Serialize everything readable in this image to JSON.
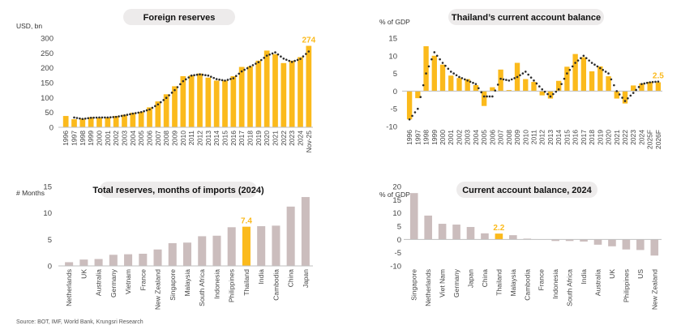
{
  "colors": {
    "highlight": "#FBBA1C",
    "grey_bar": "#CBBDBD",
    "trend": "#2B2B2B",
    "pill": "#EDEBEB",
    "axis": "#BFBFBF"
  },
  "source": "Source: BOT, IMF, World Bank, Krungsri Research",
  "chart_data": [
    {
      "type": "bar",
      "title": "Foreign reserves",
      "ylabel": "USD, bn",
      "ylim": [
        0,
        300
      ],
      "yticks": [
        0,
        50,
        100,
        150,
        200,
        250,
        300
      ],
      "categories": [
        "1996",
        "1997",
        "1998",
        "1999",
        "2000",
        "2001",
        "2002",
        "2003",
        "2004",
        "2005",
        "2006",
        "2007",
        "2008",
        "2009",
        "2010",
        "2011",
        "2012",
        "2013",
        "2014",
        "2015",
        "2016",
        "2017",
        "2018",
        "2019",
        "2020",
        "2021",
        "2022",
        "2023",
        "2024",
        "Nov-25"
      ],
      "values": [
        38,
        27,
        29,
        34,
        32,
        33,
        38,
        42,
        49,
        52,
        67,
        87,
        111,
        138,
        172,
        175,
        181,
        167,
        157,
        157,
        172,
        203,
        205,
        224,
        258,
        246,
        216,
        224,
        236,
        274
      ],
      "trend": [
        null,
        33,
        28,
        32,
        33,
        33,
        35,
        40,
        46,
        51,
        60,
        77,
        99,
        125,
        155,
        174,
        178,
        174,
        162,
        157,
        165,
        188,
        204,
        219,
        241,
        252,
        231,
        220,
        230,
        255
      ],
      "data_label": {
        "category": "Nov-25",
        "text": "274"
      }
    },
    {
      "type": "bar",
      "title": "Thailand’s current account balance",
      "ylabel": "% of GDP",
      "ylim": [
        -10,
        15
      ],
      "yticks": [
        -10,
        -5,
        0,
        5,
        10,
        15
      ],
      "categories": [
        "1996",
        "1997",
        "1998",
        "1999",
        "2000",
        "2001",
        "2002",
        "2003",
        "2004",
        "2005",
        "2006",
        "2007",
        "2008",
        "2009",
        "2010",
        "2011",
        "2012",
        "2013",
        "2014",
        "2015",
        "2016",
        "2017",
        "2018",
        "2019",
        "2020",
        "2021",
        "2022",
        "2023",
        "2024",
        "2025F",
        "2026F"
      ],
      "values": [
        -8.0,
        -2.0,
        12.7,
        10.0,
        7.5,
        4.4,
        3.7,
        3.4,
        1.7,
        -4.2,
        1.1,
        6.1,
        0.3,
        8.0,
        3.4,
        2.6,
        -1.2,
        -2.1,
        2.9,
        6.9,
        10.5,
        9.6,
        5.6,
        7.0,
        4.2,
        -2.1,
        -3.5,
        1.6,
        2.2,
        2.6,
        2.5
      ],
      "trend": [
        -8.0,
        -5.0,
        5.0,
        11.0,
        8.0,
        5.5,
        4.0,
        3.0,
        2.0,
        -1.5,
        -1.5,
        3.5,
        3.0,
        4.0,
        5.5,
        3.0,
        0.5,
        -1.5,
        0.5,
        5.0,
        8.0,
        10.0,
        8.0,
        6.5,
        5.0,
        0.0,
        -2.8,
        -0.5,
        2.0,
        2.5,
        2.7
      ],
      "data_label": {
        "category": "2026F",
        "text": "2.5"
      }
    },
    {
      "type": "bar",
      "title": "Total reserves, months of imports (2024)",
      "ylabel": "# Months",
      "ylim": [
        0,
        15
      ],
      "yticks": [
        0,
        5,
        10,
        15
      ],
      "categories": [
        "Netherlands",
        "UK",
        "Australia",
        "Germany",
        "Vietnam",
        "France",
        "New Zealand",
        "Singapore",
        "Malaysia",
        "South Africa",
        "Indonesia",
        "Philippines",
        "Thailand",
        "India",
        "Cambodia",
        "China",
        "Japan"
      ],
      "values": [
        0.7,
        1.2,
        1.3,
        2.1,
        2.2,
        2.3,
        3.1,
        4.3,
        4.4,
        5.6,
        5.7,
        7.3,
        7.4,
        7.5,
        7.6,
        11.2,
        13.0
      ],
      "highlight": "Thailand",
      "data_label": {
        "category": "Thailand",
        "text": "7.4"
      }
    },
    {
      "type": "bar",
      "title": "Current account balance, 2024",
      "ylabel": "% of GDP",
      "ylim": [
        -10,
        20
      ],
      "yticks": [
        -10,
        -5,
        0,
        5,
        10,
        15,
        20
      ],
      "categories": [
        "Singapore",
        "Netherlands",
        "Viet Nam",
        "Germany",
        "Japan",
        "China",
        "Thailand",
        "Malaysia",
        "Cambodia",
        "France",
        "Indonesia",
        "South Africa",
        "India",
        "Australia",
        "UK",
        "Philippines",
        "US",
        "New Zealand"
      ],
      "values": [
        17.5,
        9.0,
        5.9,
        5.6,
        4.7,
        2.3,
        2.2,
        1.6,
        0.3,
        0.0,
        -0.6,
        -0.6,
        -0.8,
        -2.0,
        -2.6,
        -3.8,
        -4.0,
        -6.1
      ],
      "highlight": "Thailand",
      "data_label": {
        "category": "Thailand",
        "text": "2.2"
      }
    }
  ]
}
